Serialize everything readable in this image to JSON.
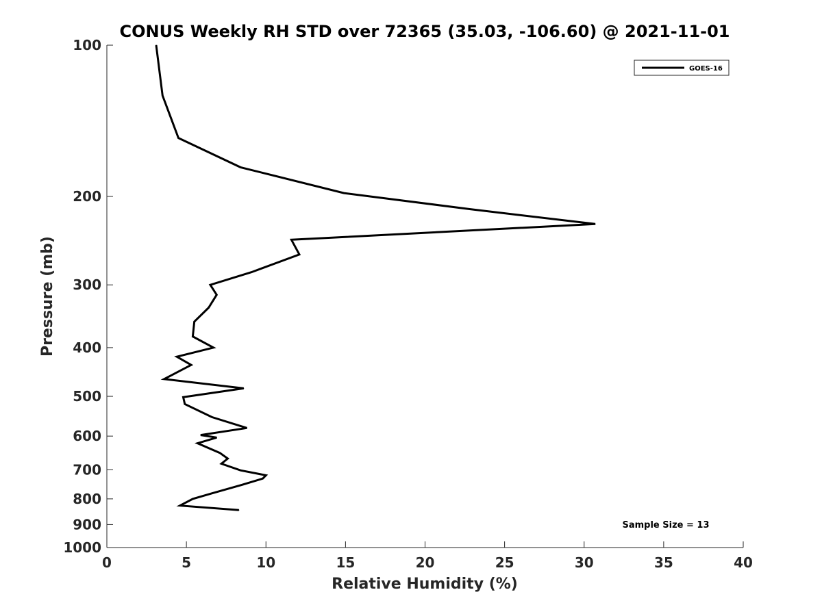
{
  "chart_data": {
    "type": "line",
    "title": "CONUS Weekly RH STD over 72365 (35.03, -106.60) @ 2021-11-01",
    "xlabel": "Relative Humidity (%)",
    "ylabel": "Pressure (mb)",
    "xlim": [
      0,
      40
    ],
    "ylim": [
      100,
      1000
    ],
    "y_scale": "log",
    "y_reversed": true,
    "grid": false,
    "legend_position": "top-right",
    "x_ticks": [
      "0",
      "5",
      "10",
      "15",
      "20",
      "25",
      "30",
      "35",
      "40"
    ],
    "y_ticks": [
      "100",
      "200",
      "300",
      "400",
      "500",
      "600",
      "700",
      "800",
      "900",
      "1000"
    ],
    "annotation": "Sample Size = 13",
    "series": [
      {
        "name": "GOES-16",
        "color": "#000000",
        "points": [
          {
            "rh": 3.1,
            "p": 100
          },
          {
            "rh": 3.5,
            "p": 126
          },
          {
            "rh": 4.5,
            "p": 153
          },
          {
            "rh": 8.4,
            "p": 175
          },
          {
            "rh": 14.9,
            "p": 197
          },
          {
            "rh": 22.8,
            "p": 212
          },
          {
            "rh": 30.7,
            "p": 227
          },
          {
            "rh": 11.6,
            "p": 244
          },
          {
            "rh": 12.1,
            "p": 261
          },
          {
            "rh": 9.1,
            "p": 283
          },
          {
            "rh": 6.5,
            "p": 300
          },
          {
            "rh": 6.9,
            "p": 314
          },
          {
            "rh": 6.4,
            "p": 333
          },
          {
            "rh": 5.5,
            "p": 355
          },
          {
            "rh": 5.4,
            "p": 380
          },
          {
            "rh": 6.7,
            "p": 400
          },
          {
            "rh": 4.4,
            "p": 417
          },
          {
            "rh": 5.3,
            "p": 433
          },
          {
            "rh": 3.6,
            "p": 462
          },
          {
            "rh": 8.6,
            "p": 482
          },
          {
            "rh": 4.8,
            "p": 502
          },
          {
            "rh": 4.9,
            "p": 518
          },
          {
            "rh": 6.6,
            "p": 550
          },
          {
            "rh": 8.8,
            "p": 578
          },
          {
            "rh": 5.9,
            "p": 597
          },
          {
            "rh": 6.9,
            "p": 604
          },
          {
            "rh": 5.7,
            "p": 620
          },
          {
            "rh": 7.1,
            "p": 648
          },
          {
            "rh": 7.6,
            "p": 665
          },
          {
            "rh": 7.2,
            "p": 681
          },
          {
            "rh": 8.4,
            "p": 702
          },
          {
            "rh": 10.0,
            "p": 718
          },
          {
            "rh": 9.8,
            "p": 729
          },
          {
            "rh": 8.5,
            "p": 750
          },
          {
            "rh": 6.6,
            "p": 780
          },
          {
            "rh": 5.4,
            "p": 800
          },
          {
            "rh": 4.6,
            "p": 825
          },
          {
            "rh": 8.3,
            "p": 842
          }
        ]
      }
    ]
  }
}
